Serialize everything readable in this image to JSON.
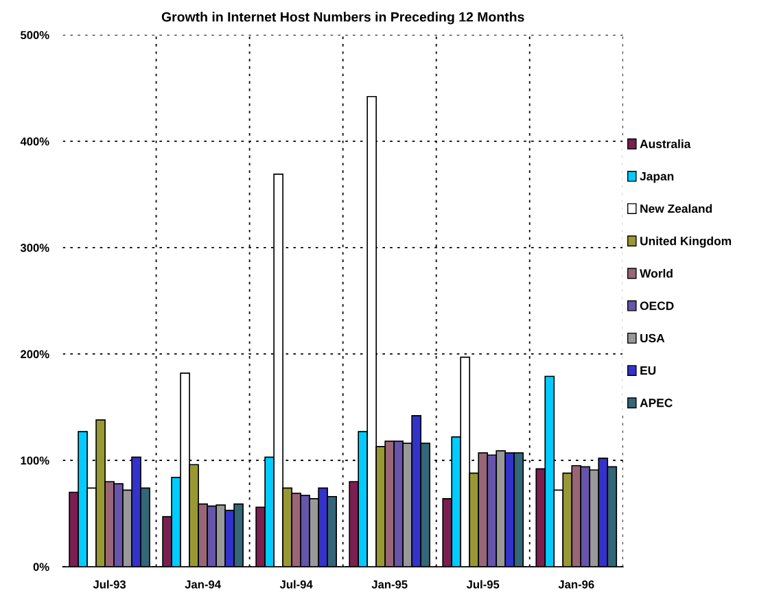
{
  "chart_data": {
    "type": "bar",
    "title": "Growth in Internet Host Numbers in Preceding 12 Months",
    "categories": [
      "Jul-93",
      "Jan-94",
      "Jul-94",
      "Jan-95",
      "Jul-95",
      "Jan-96"
    ],
    "series": [
      {
        "name": "Australia",
        "color": "#7a1f4f",
        "values": [
          70,
          47,
          56,
          80,
          64,
          92
        ]
      },
      {
        "name": "Japan",
        "color": "#00ccff",
        "values": [
          127,
          84,
          103,
          127,
          122,
          179
        ]
      },
      {
        "name": "New Zealand",
        "color": "#ffffff",
        "values": [
          74,
          182,
          369,
          442,
          197,
          72
        ]
      },
      {
        "name": "United Kingdom",
        "color": "#999933",
        "values": [
          138,
          96,
          74,
          113,
          88,
          88
        ]
      },
      {
        "name": "World",
        "color": "#996677",
        "values": [
          80,
          59,
          69,
          118,
          107,
          95
        ]
      },
      {
        "name": "OECD",
        "color": "#6655aa",
        "values": [
          78,
          57,
          67,
          118,
          105,
          94
        ]
      },
      {
        "name": "USA",
        "color": "#999999",
        "values": [
          72,
          58,
          64,
          116,
          109,
          91
        ]
      },
      {
        "name": "EU",
        "color": "#3333cc",
        "values": [
          103,
          53,
          74,
          142,
          107,
          102
        ]
      },
      {
        "name": "APEC",
        "color": "#336677",
        "values": [
          74,
          59,
          66,
          116,
          107,
          94
        ]
      }
    ],
    "ylim": [
      0,
      500
    ],
    "yticks": [
      {
        "value": 0,
        "label": "0%"
      },
      {
        "value": 100,
        "label": "100%"
      },
      {
        "value": 200,
        "label": "200%"
      },
      {
        "value": 300,
        "label": "300%"
      },
      {
        "value": 400,
        "label": "400%"
      },
      {
        "value": 500,
        "label": "500%"
      }
    ],
    "grid": true,
    "legend": "right"
  }
}
